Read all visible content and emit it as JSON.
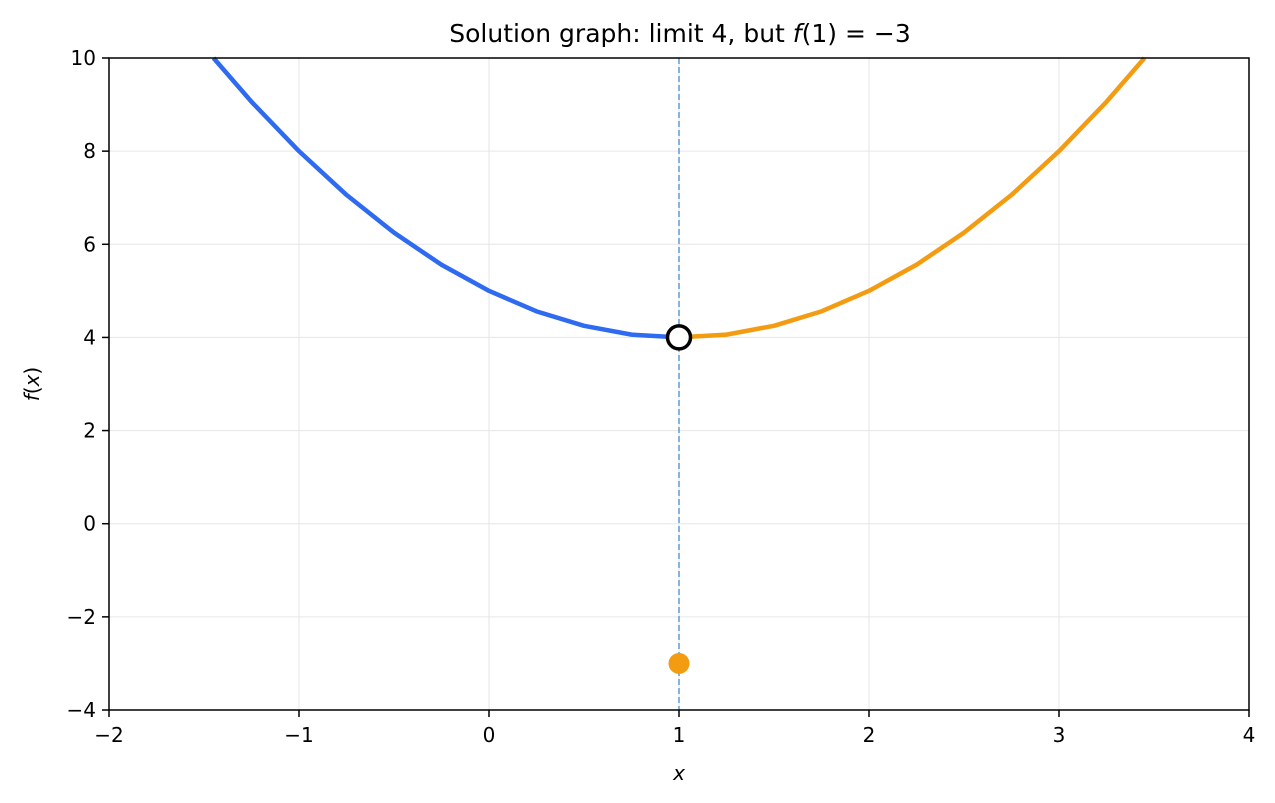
{
  "chart_data": {
    "type": "line",
    "title_parts": {
      "prefix": "Solution graph: limit 4, but ",
      "fx": "f",
      "arg": "(1)",
      "suffix": " = −3"
    },
    "xlabel": "x",
    "ylabel_parts": {
      "f": "f",
      "open": "(",
      "x": "x",
      "close": ")"
    },
    "xlim": [
      -2,
      4
    ],
    "ylim": [
      -4,
      10
    ],
    "x_ticks": [
      -2,
      -1,
      0,
      1,
      2,
      3,
      4
    ],
    "y_ticks": [
      -4,
      -2,
      0,
      2,
      4,
      6,
      8,
      10
    ],
    "x_tick_labels": [
      "−2",
      "−1",
      "0",
      "1",
      "2",
      "3",
      "4"
    ],
    "y_tick_labels": [
      "−4",
      "−2",
      "0",
      "2",
      "4",
      "6",
      "8",
      "10"
    ],
    "grid": true,
    "series": [
      {
        "segment": "left",
        "color": "#2f6bf0",
        "x": [
          -1.45,
          -1.25,
          -1.0,
          -0.75,
          -0.5,
          -0.25,
          0.0,
          0.25,
          0.5,
          0.75,
          1.0
        ],
        "y": [
          10.0,
          9.06,
          8.0,
          7.06,
          6.25,
          5.56,
          5.0,
          4.56,
          4.25,
          4.06,
          4.0
        ]
      },
      {
        "segment": "right",
        "color": "#f39c12",
        "x": [
          1.0,
          1.25,
          1.5,
          1.75,
          2.0,
          2.25,
          2.5,
          2.75,
          3.0,
          3.25,
          3.45
        ],
        "y": [
          4.0,
          4.06,
          4.25,
          4.56,
          5.0,
          5.56,
          6.25,
          7.06,
          8.0,
          9.06,
          10.0
        ]
      }
    ],
    "open_point": {
      "x": 1,
      "y": 4
    },
    "filled_point": {
      "x": 1,
      "y": -3,
      "color": "#f39c12"
    },
    "vertical_line": {
      "x": 1,
      "color": "#5b9bd5"
    }
  }
}
